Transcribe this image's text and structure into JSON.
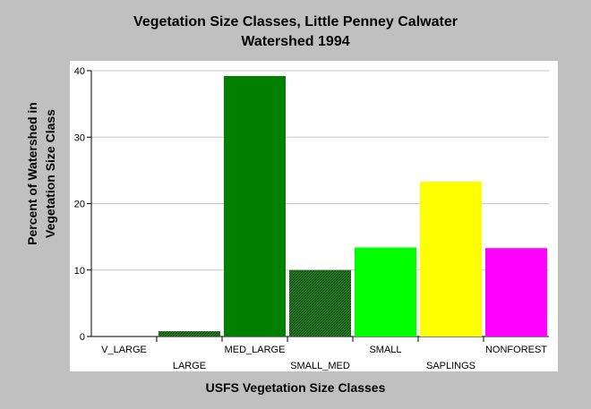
{
  "chart_data": {
    "type": "bar",
    "title": "Vegetation Size Classes, Little Penney Calwater Watershed 1994",
    "title_lines": [
      "Vegetation Size Classes, Little Penney Calwater",
      "Watershed 1994"
    ],
    "xlabel": "USFS Vegetation Size Classes",
    "ylabel": "Percent of Watershed in Vegetation Size Class",
    "ylabel_lines": [
      "Percent of Watershed in",
      "Vegetation Size Class"
    ],
    "categories": [
      "V_LARGE",
      "LARGE",
      "MED_LARGE",
      "SMALL_MED",
      "SMALL",
      "SAPLINGS",
      "NONFOREST"
    ],
    "values": [
      0,
      0.8,
      39.2,
      10.0,
      13.4,
      23.3,
      13.3
    ],
    "colors": [
      "#006400",
      "#1f6b1f",
      "#008000",
      "#2e7d2e",
      "#00ff00",
      "#ffff00",
      "#ff00ff"
    ],
    "hatched": [
      false,
      true,
      false,
      true,
      false,
      false,
      false
    ],
    "ylim": [
      0,
      40
    ],
    "yticks": [
      0,
      10,
      20,
      30,
      40
    ],
    "grid": true
  }
}
